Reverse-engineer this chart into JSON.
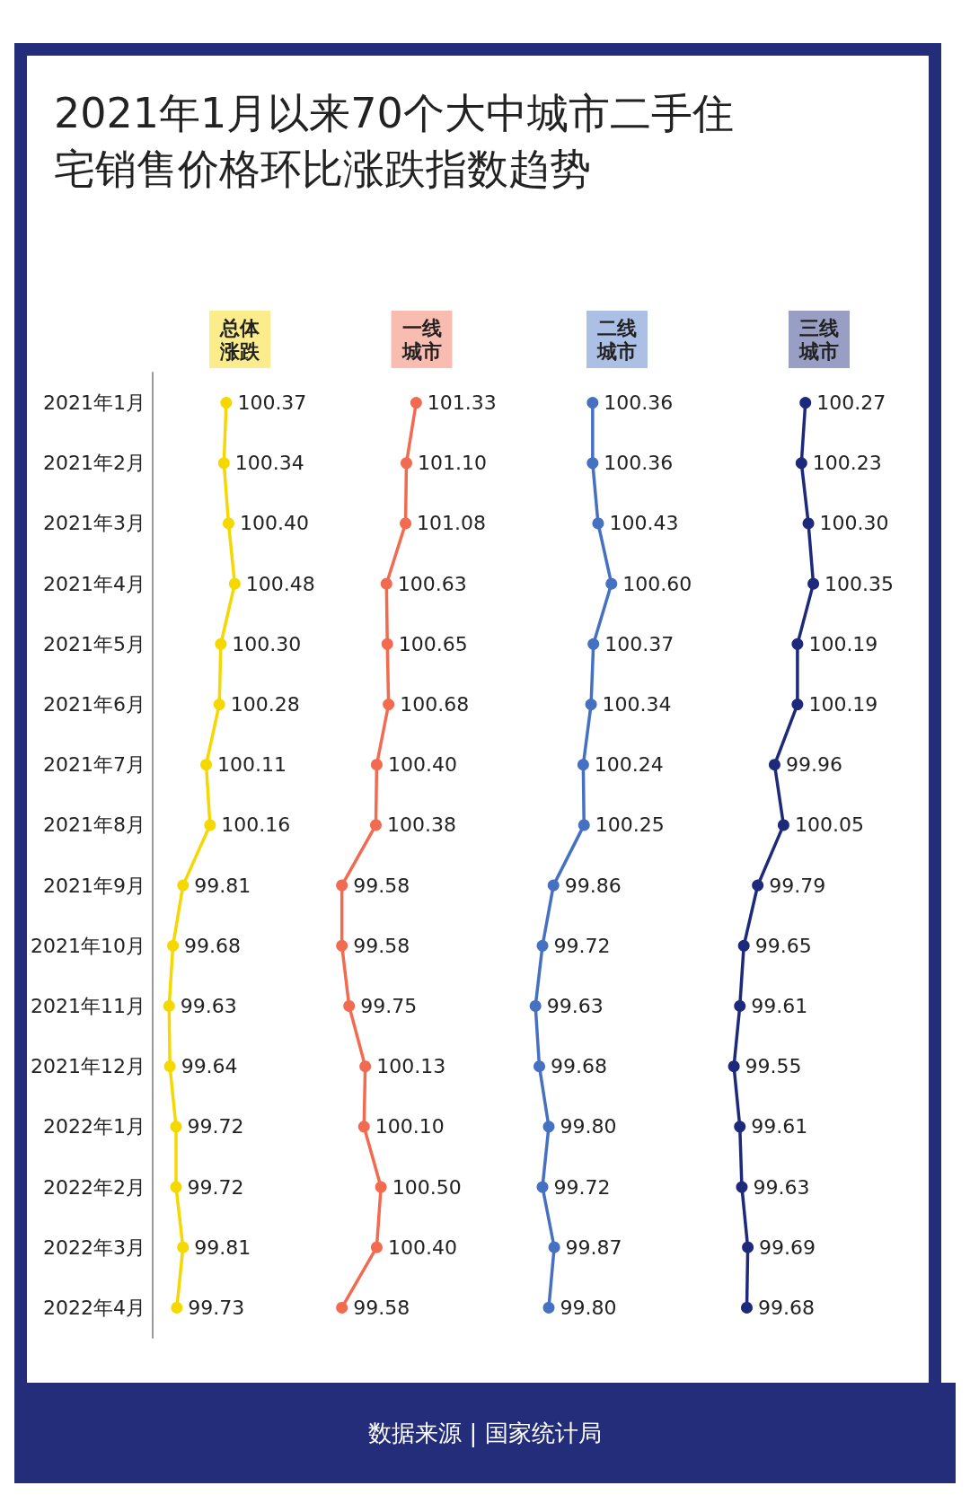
{
  "chart_data": [
    {
      "type": "line",
      "title": "2021年1月以来70个大中城市二手住宅销售价格环比涨跌指数趋势",
      "subtitle": "总体涨跌",
      "annotations": [
        "数据来源 | 国家统计局"
      ],
      "orientation": "horizontal",
      "tick_labels": "y",
      "marker": "circle",
      "line_style": "solid",
      "grid": false,
      "categories": [
        "2021年1月",
        "2021年2月",
        "2021年3月",
        "2021年4月",
        "2021年5月",
        "2021年6月",
        "2021年7月",
        "2021年8月",
        "2021年9月",
        "2021年10月",
        "2021年11月",
        "2021年12月",
        "2022年1月",
        "2022年2月",
        "2022年3月",
        "2022年4月"
      ],
      "series": [
        {
          "color": "#f5d800",
          "values": [
            100.37,
            100.34,
            100.4,
            100.48,
            100.3,
            100.28,
            100.11,
            100.16,
            99.81,
            99.68,
            99.63,
            99.64,
            99.72,
            99.72,
            99.81,
            99.73
          ],
          "value_labels": [
            "100.37",
            "100.34",
            "100.40",
            "100.48",
            "100.30",
            "100.28",
            "100.11",
            "100.16",
            "99.81",
            "99.68",
            "99.63",
            "99.64",
            "99.72",
            "99.72",
            "99.81",
            "99.73"
          ]
        }
      ]
    },
    {
      "type": "line",
      "subtitle": "一线城市",
      "orientation": "horizontal",
      "tick_labels": false,
      "marker": "circle",
      "line_style": "solid",
      "grid": false,
      "series": [
        {
          "color": "#f26b50",
          "values": [
            101.33,
            101.1,
            101.08,
            100.63,
            100.65,
            100.68,
            100.4,
            100.38,
            99.58,
            99.58,
            99.75,
            100.13,
            100.1,
            100.5,
            100.4,
            99.58
          ],
          "value_labels": [
            "101.33",
            "101.10",
            "101.08",
            "100.63",
            "100.65",
            "100.68",
            "100.40",
            "100.38",
            "99.58",
            "99.58",
            "99.75",
            "100.13",
            "100.10",
            "100.50",
            "100.40",
            "99.58"
          ]
        }
      ]
    },
    {
      "type": "line",
      "subtitle": "二线城市",
      "orientation": "horizontal",
      "tick_labels": false,
      "marker": "circle",
      "line_style": "solid",
      "grid": false,
      "series": [
        {
          "color": "#4670c2",
          "values": [
            100.36,
            100.36,
            100.43,
            100.6,
            100.37,
            100.34,
            100.24,
            100.25,
            99.86,
            99.72,
            99.63,
            99.68,
            99.8,
            99.72,
            99.87,
            99.8
          ],
          "value_labels": [
            "100.36",
            "100.36",
            "100.43",
            "100.60",
            "100.37",
            "100.34",
            "100.24",
            "100.25",
            "99.86",
            "99.72",
            "99.63",
            "99.68",
            "99.80",
            "99.72",
            "99.87",
            "99.80"
          ]
        }
      ]
    },
    {
      "type": "line",
      "subtitle": "三线城市",
      "orientation": "horizontal",
      "tick_labels": false,
      "marker": "circle",
      "line_style": "solid",
      "grid": false,
      "series": [
        {
          "color": "#1d2a7c",
          "values": [
            100.27,
            100.23,
            100.3,
            100.35,
            100.19,
            100.19,
            99.96,
            100.05,
            99.79,
            99.65,
            99.61,
            99.55,
            99.61,
            99.63,
            99.69,
            99.68
          ],
          "value_labels": [
            "100.27",
            "100.23",
            "100.30",
            "100.35",
            "100.19",
            "100.19",
            "99.96",
            "100.05",
            "99.79",
            "99.65",
            "99.61",
            "99.55",
            "99.61",
            "99.63",
            "99.69",
            "99.68"
          ]
        }
      ]
    }
  ]
}
